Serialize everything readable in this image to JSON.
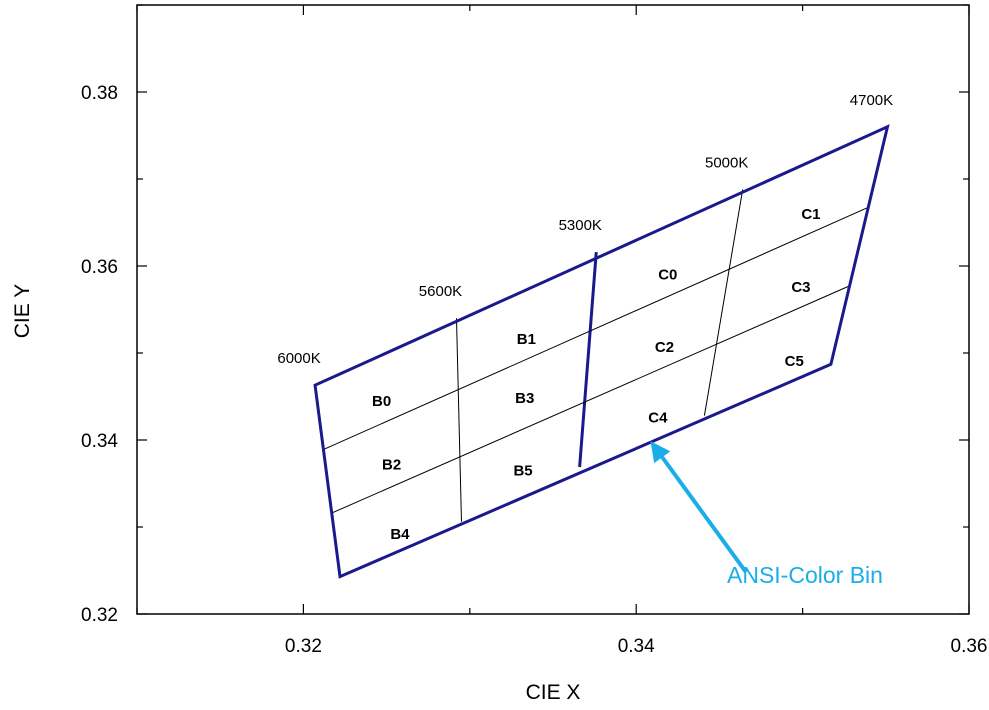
{
  "chart_data": {
    "type": "scatter",
    "title": "",
    "xlabel": "CIE X",
    "ylabel": "CIE Y",
    "xlim": [
      0.31,
      0.36
    ],
    "ylim": [
      0.32,
      0.39
    ],
    "xticks": [
      0.32,
      0.34,
      0.36
    ],
    "xtick_labels": [
      "0.32",
      "0.34",
      "0.36"
    ],
    "yticks": [
      0.32,
      0.34,
      0.36,
      0.38
    ],
    "ytick_labels": [
      "0.32",
      "0.34",
      "0.36",
      "0.38"
    ],
    "grid": false,
    "colors": {
      "outline": "#1a1a8c",
      "inner": "#000000",
      "annotation": "#1aaee8"
    },
    "outline": {
      "name": "",
      "points": [
        [
          0.3207,
          0.3463
        ],
        [
          0.3551,
          0.376
        ],
        [
          0.3517,
          0.3487
        ],
        [
          0.3222,
          0.3243
        ]
      ]
    },
    "dividers": [
      {
        "role": "cct-boundary",
        "points": [
          [
            0.3376,
            0.3616
          ],
          [
            0.3366,
            0.3369
          ]
        ]
      },
      {
        "role": "inner",
        "points": [
          [
            0.3292,
            0.354
          ],
          [
            0.3295,
            0.3306
          ]
        ]
      },
      {
        "role": "inner",
        "points": [
          [
            0.3464,
            0.3688
          ],
          [
            0.3441,
            0.3428
          ]
        ]
      },
      {
        "role": "inner",
        "points": [
          [
            0.3212,
            0.3389
          ],
          [
            0.3539,
            0.3667
          ]
        ]
      },
      {
        "role": "inner",
        "points": [
          [
            0.3217,
            0.3316
          ],
          [
            0.3528,
            0.3577
          ]
        ]
      }
    ],
    "cct_labels": [
      {
        "text": "6000K",
        "x": 0.3207,
        "y": 0.3463
      },
      {
        "text": "5600K",
        "x": 0.3292,
        "y": 0.354
      },
      {
        "text": "5300K",
        "x": 0.3376,
        "y": 0.3616
      },
      {
        "text": "5000K",
        "x": 0.3464,
        "y": 0.3688
      },
      {
        "text": "4700K",
        "x": 0.3551,
        "y": 0.376
      }
    ],
    "bins": [
      {
        "name": "B0",
        "x": 0.3247,
        "y": 0.3445
      },
      {
        "name": "B1",
        "x": 0.3334,
        "y": 0.3516
      },
      {
        "name": "B2",
        "x": 0.3253,
        "y": 0.3372
      },
      {
        "name": "B3",
        "x": 0.3333,
        "y": 0.3448
      },
      {
        "name": "B4",
        "x": 0.3258,
        "y": 0.3292
      },
      {
        "name": "B5",
        "x": 0.3332,
        "y": 0.3365
      },
      {
        "name": "C0",
        "x": 0.3419,
        "y": 0.359
      },
      {
        "name": "C1",
        "x": 0.3505,
        "y": 0.366
      },
      {
        "name": "C2",
        "x": 0.3417,
        "y": 0.3507
      },
      {
        "name": "C3",
        "x": 0.3499,
        "y": 0.3576
      },
      {
        "name": "C4",
        "x": 0.3413,
        "y": 0.3426
      },
      {
        "name": "C5",
        "x": 0.3495,
        "y": 0.3491
      }
    ],
    "annotation": {
      "text": "ANSI-Color Bin",
      "arrow_from": [
        0.3466,
        0.3248
      ],
      "arrow_to": [
        0.341,
        0.3395
      ]
    }
  }
}
